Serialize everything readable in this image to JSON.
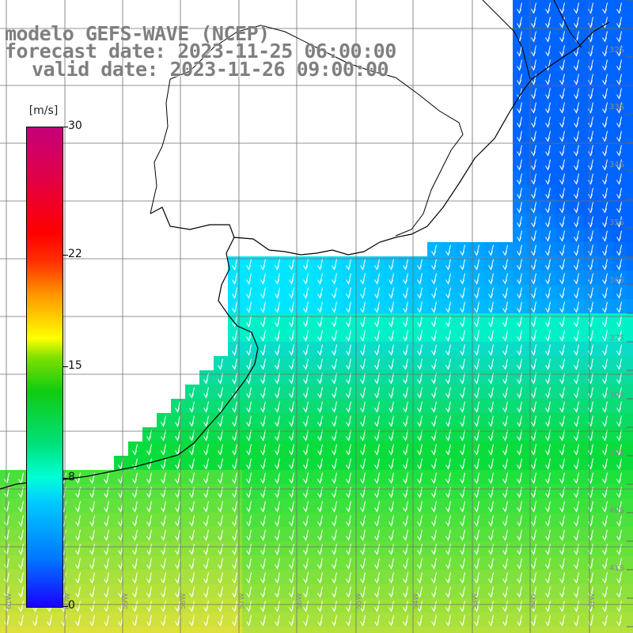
{
  "header": {
    "model_line": "modelo GEFS-WAVE (NCEP)",
    "forecast_line": "forecast date: 2023-11-25 06:00:00",
    "valid_line": "valid date: 2023-11-26 09:00:00"
  },
  "colorbar": {
    "unit": "[m/s]",
    "ticks": [
      {
        "value": 30,
        "label": "30"
      },
      {
        "value": 22,
        "label": "22"
      },
      {
        "value": 15,
        "label": "15"
      },
      {
        "value": 8,
        "label": "8"
      },
      {
        "value": 0,
        "label": "0"
      }
    ],
    "range": [
      0,
      30
    ]
  },
  "map": {
    "lat_labels": [
      "32S",
      "33S",
      "34S",
      "35S",
      "36S",
      "37S",
      "38S",
      "39S",
      "40S",
      "41S"
    ],
    "lon_labels": [
      "61W",
      "60W",
      "59W",
      "58W",
      "57W",
      "56W",
      "55W",
      "54W",
      "53W",
      "52W",
      "51W"
    ],
    "wind_direction": "SSE",
    "colors": {
      "strong_blue": "#1e6bff",
      "cyan": "#00e5ff",
      "green": "#10d030",
      "yellow_green": "#a0f060",
      "land": "#ffffff",
      "grid": "#777777",
      "coast": "#000000"
    }
  }
}
